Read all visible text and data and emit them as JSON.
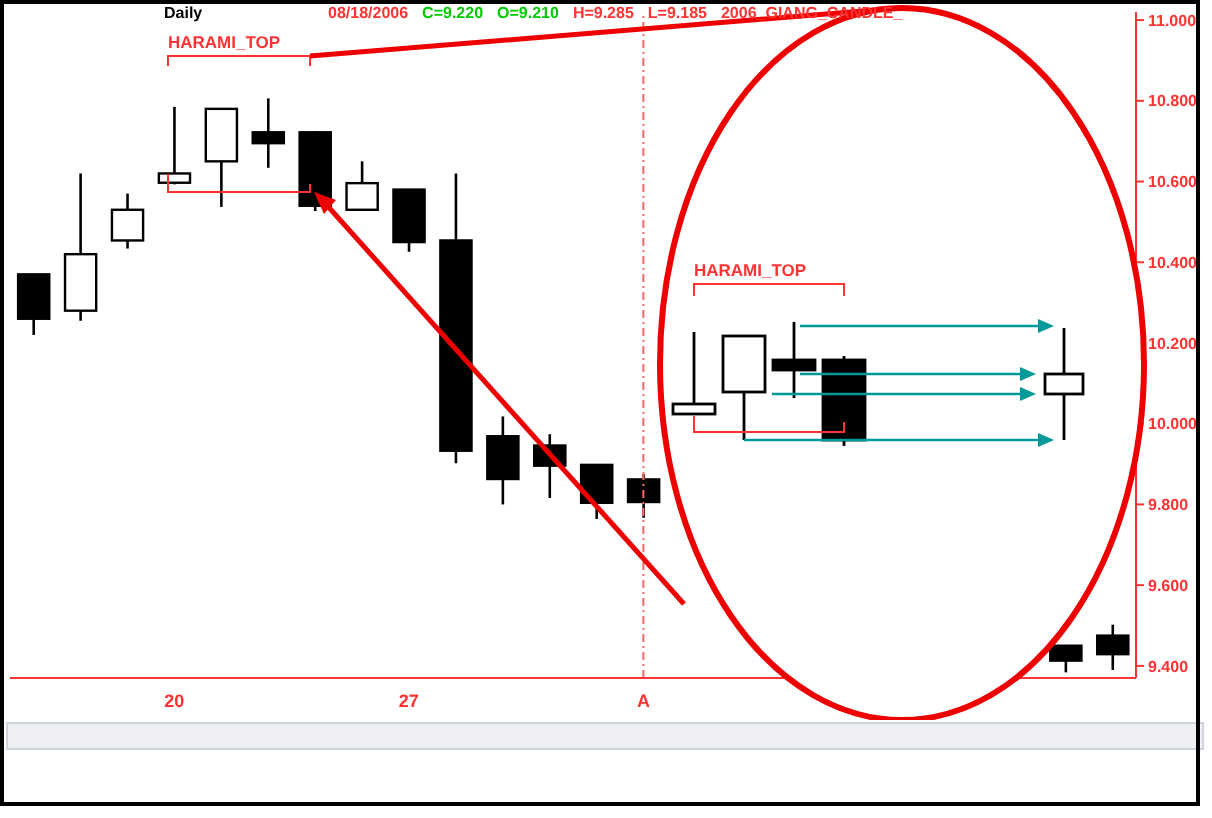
{
  "chart_data": {
    "type": "candlestick",
    "title": "Daily",
    "categories": [
      null,
      null,
      null,
      "20",
      null,
      null,
      null,
      null,
      "27",
      null,
      null,
      null,
      null,
      "A",
      null,
      null,
      null,
      null,
      null,
      null,
      null,
      null,
      null,
      null
    ],
    "ohlc": [
      [
        10.37,
        10.37,
        10.22,
        10.26
      ],
      [
        10.28,
        10.62,
        10.255,
        10.42
      ],
      [
        10.454,
        10.57,
        10.434,
        10.53
      ],
      [
        10.597,
        10.785,
        10.593,
        10.62
      ],
      [
        10.65,
        10.78,
        10.537,
        10.78
      ],
      [
        10.722,
        10.806,
        10.634,
        10.695
      ],
      [
        10.722,
        10.725,
        10.527,
        10.54
      ],
      [
        10.53,
        10.65,
        10.527,
        10.596
      ],
      [
        10.58,
        10.58,
        10.426,
        10.45
      ],
      [
        10.454,
        10.62,
        9.902,
        9.933
      ],
      [
        9.969,
        10.018,
        9.8,
        9.863
      ],
      [
        9.946,
        9.974,
        9.816,
        9.896
      ],
      [
        9.898,
        9.898,
        9.764,
        9.804
      ],
      [
        9.862,
        9.875,
        9.767,
        9.806
      ],
      null,
      null,
      null,
      null,
      null,
      null,
      null,
      null,
      [
        9.45,
        9.45,
        9.384,
        9.413
      ],
      [
        9.475,
        9.502,
        9.39,
        9.429
      ]
    ],
    "ylim": [
      9.37,
      11.02
    ],
    "yticks": [
      {
        "value": 9.4,
        "label": "9.400"
      },
      {
        "value": 9.6,
        "label": "9.600"
      },
      {
        "value": 9.8,
        "label": "9.800"
      },
      {
        "value": 10,
        "label": "10.000"
      },
      {
        "value": 10.2,
        "label": "10.200"
      },
      {
        "value": 10.4,
        "label": "10.400"
      },
      {
        "value": 10.6,
        "label": "10.600"
      },
      {
        "value": 10.8,
        "label": "10.800"
      },
      {
        "value": 11,
        "label": "11.000"
      }
    ],
    "ref_lines": [
      {
        "axis": "x",
        "value": "A",
        "color": "#ff6666",
        "line_style": "dashed"
      }
    ],
    "annotations": [
      "08/18/2006",
      "C=9.220",
      "O=9.210",
      "H=9.285",
      "L=9.185",
      "2006_GIANG_CANDLE_",
      "HARAMI_TOP",
      "HARAMI_TOP"
    ],
    "tick_labels": true
  }
}
